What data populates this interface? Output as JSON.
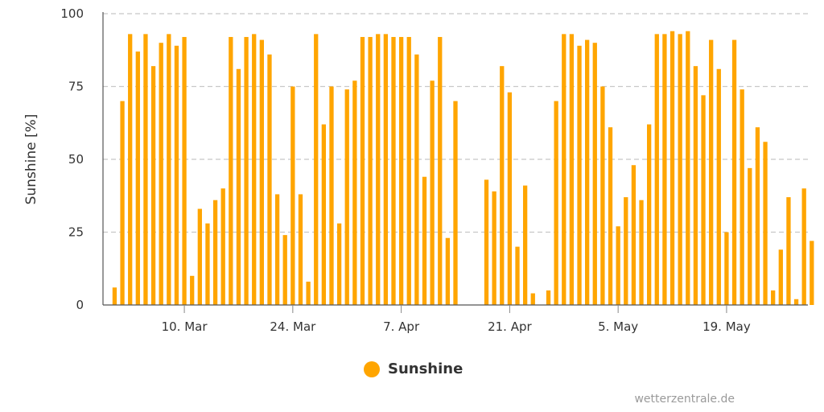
{
  "chart_data": {
    "type": "bar",
    "ylabel": "Sunshine [%]",
    "ylim": [
      0,
      100
    ],
    "yticks": [
      0,
      25,
      50,
      75,
      100
    ],
    "grid": true,
    "legend_position": "bottom-center",
    "series": [
      {
        "name": "Sunshine",
        "color": "#ffa500",
        "x": [
          "2024-03-01",
          "2024-03-02",
          "2024-03-03",
          "2024-03-04",
          "2024-03-05",
          "2024-03-06",
          "2024-03-07",
          "2024-03-08",
          "2024-03-09",
          "2024-03-10",
          "2024-03-11",
          "2024-03-12",
          "2024-03-13",
          "2024-03-14",
          "2024-03-15",
          "2024-03-16",
          "2024-03-17",
          "2024-03-18",
          "2024-03-19",
          "2024-03-20",
          "2024-03-21",
          "2024-03-22",
          "2024-03-23",
          "2024-03-24",
          "2024-03-25",
          "2024-03-26",
          "2024-03-27",
          "2024-03-28",
          "2024-03-29",
          "2024-03-30",
          "2024-03-31",
          "2024-04-01",
          "2024-04-02",
          "2024-04-03",
          "2024-04-04",
          "2024-04-05",
          "2024-04-06",
          "2024-04-07",
          "2024-04-08",
          "2024-04-09",
          "2024-04-10",
          "2024-04-11",
          "2024-04-12",
          "2024-04-13",
          "2024-04-14",
          "2024-04-18",
          "2024-04-19",
          "2024-04-20",
          "2024-04-21",
          "2024-04-22",
          "2024-04-23",
          "2024-04-24",
          "2024-04-25",
          "2024-04-26",
          "2024-04-27",
          "2024-04-28",
          "2024-04-29",
          "2024-04-30",
          "2024-05-01",
          "2024-05-02",
          "2024-05-03",
          "2024-05-04",
          "2024-05-05",
          "2024-05-06",
          "2024-05-07",
          "2024-05-08",
          "2024-05-09",
          "2024-05-10",
          "2024-05-11",
          "2024-05-12",
          "2024-05-13",
          "2024-05-14",
          "2024-05-15",
          "2024-05-16",
          "2024-05-17",
          "2024-05-18",
          "2024-05-19",
          "2024-05-20",
          "2024-05-21",
          "2024-05-22",
          "2024-05-23",
          "2024-05-24",
          "2024-05-25",
          "2024-05-26",
          "2024-05-27",
          "2024-05-28"
        ],
        "values": [
          6,
          70,
          93,
          87,
          93,
          82,
          90,
          93,
          89,
          92,
          10,
          33,
          28,
          36,
          40,
          92,
          81,
          92,
          93,
          91,
          86,
          38,
          24,
          75,
          38,
          8,
          93,
          62,
          75,
          28,
          74,
          77,
          92,
          92,
          93,
          93,
          92,
          92,
          92,
          86,
          44,
          77,
          92,
          23,
          70,
          43,
          39,
          82,
          73,
          20,
          41,
          4,
          0,
          5,
          70,
          93,
          93,
          89,
          91,
          90,
          75,
          61,
          27,
          37,
          48,
          36,
          62,
          93,
          93,
          94,
          93,
          94,
          82,
          72,
          91,
          81,
          25,
          91,
          74,
          47,
          61,
          56,
          5,
          19,
          37,
          2
        ]
      }
    ],
    "xticks": [
      {
        "label": "10. Mar",
        "x": "2024-03-10"
      },
      {
        "label": "24. Mar",
        "x": "2024-03-24"
      },
      {
        "label": "7. Apr",
        "x": "2024-04-07"
      },
      {
        "label": "21. Apr",
        "x": "2024-04-21"
      },
      {
        "label": "5. May",
        "x": "2024-05-05"
      },
      {
        "label": "19. May",
        "x": "2024-05-19"
      }
    ],
    "xlim": [
      "2024-02-29",
      "2024-05-30"
    ]
  },
  "extra_bars": {
    "note_free": true,
    "x": [
      "2024-05-29",
      "2024-05-30"
    ],
    "values": [
      40,
      22
    ]
  },
  "legend": {
    "label": "Sunshine",
    "color": "#ffa500"
  },
  "credit": "wetterzentrale.de"
}
